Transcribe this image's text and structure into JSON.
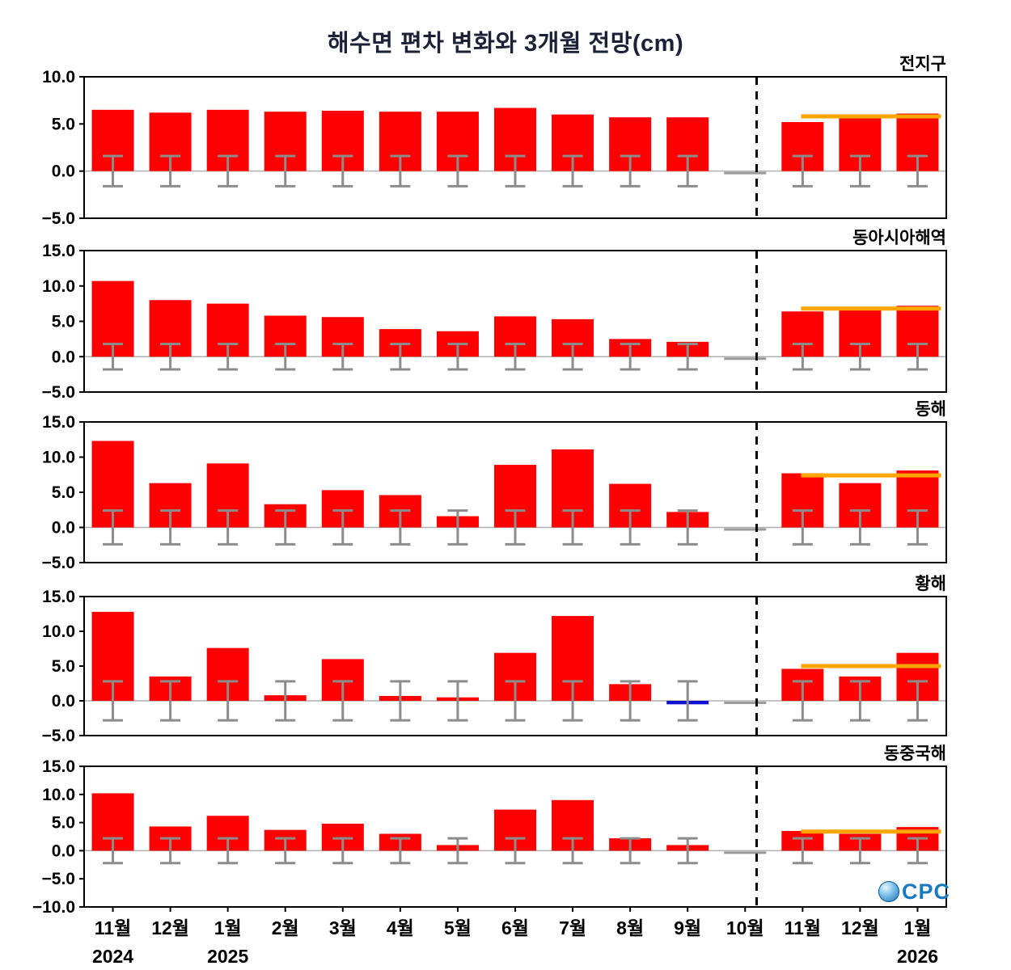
{
  "title": "해수면 편차 변화와 3개월 전망(cm)",
  "logo": {
    "icon": "ocpc-globe-icon",
    "text": "CPC"
  },
  "chart_data": {
    "type": "bar",
    "categories": [
      "11월",
      "12월",
      "1월",
      "2월",
      "3월",
      "4월",
      "5월",
      "6월",
      "7월",
      "8월",
      "9월",
      "10월",
      "11월",
      "12월",
      "1월"
    ],
    "year_labels": [
      {
        "index": 0,
        "label": "2024"
      },
      {
        "index": 2,
        "label": "2025"
      },
      {
        "index": 14,
        "label": "2026"
      }
    ],
    "forecast_start_index": 12,
    "colors": {
      "bar_positive": "#ff0000",
      "bar_negative": "#1010d0",
      "error_bar": "#8c8c8c",
      "forecast_line": "#ffa500",
      "divider": "#000000",
      "zero_line": "#b0b0b0",
      "no_data": "#9a9a9a"
    },
    "panels": [
      {
        "name": "전지구",
        "ylim": [
          -5,
          10
        ],
        "yticks": [
          10,
          5,
          0,
          -5
        ],
        "values": [
          6.5,
          6.2,
          6.5,
          6.3,
          6.4,
          6.3,
          6.3,
          6.7,
          6.0,
          5.7,
          5.7,
          null,
          5.2,
          5.6,
          6.1
        ],
        "error": 1.6,
        "forecast_line_y": 5.8
      },
      {
        "name": "동아시아해역",
        "ylim": [
          -5,
          15
        ],
        "yticks": [
          15,
          10,
          5,
          0,
          -5
        ],
        "values": [
          10.7,
          8.0,
          7.5,
          5.8,
          5.6,
          3.9,
          3.6,
          5.7,
          5.3,
          2.5,
          2.1,
          null,
          6.4,
          6.7,
          7.2
        ],
        "error": 1.8,
        "forecast_line_y": 6.8
      },
      {
        "name": "동해",
        "ylim": [
          -5,
          15
        ],
        "yticks": [
          15,
          10,
          5,
          0,
          -5
        ],
        "values": [
          12.3,
          6.3,
          9.1,
          3.3,
          5.3,
          4.6,
          1.6,
          8.9,
          11.1,
          6.2,
          2.2,
          null,
          7.7,
          6.3,
          8.1
        ],
        "error": 2.4,
        "forecast_line_y": 7.4
      },
      {
        "name": "황해",
        "ylim": [
          -5,
          15
        ],
        "yticks": [
          15,
          10,
          5,
          0,
          -5
        ],
        "values": [
          12.8,
          3.5,
          7.6,
          0.8,
          6.0,
          0.7,
          0.5,
          6.9,
          12.2,
          2.4,
          -0.5,
          null,
          4.6,
          3.5,
          6.9
        ],
        "error": 2.8,
        "forecast_line_y": 5.0
      },
      {
        "name": "동중국해",
        "ylim": [
          -10,
          15
        ],
        "yticks": [
          15,
          10,
          5,
          0,
          -5,
          -10
        ],
        "values": [
          10.2,
          4.3,
          6.2,
          3.7,
          4.8,
          3.0,
          1.0,
          7.3,
          9.0,
          2.2,
          1.0,
          null,
          3.5,
          3.0,
          4.2
        ],
        "error": 2.2,
        "forecast_line_y": 3.4
      }
    ]
  }
}
